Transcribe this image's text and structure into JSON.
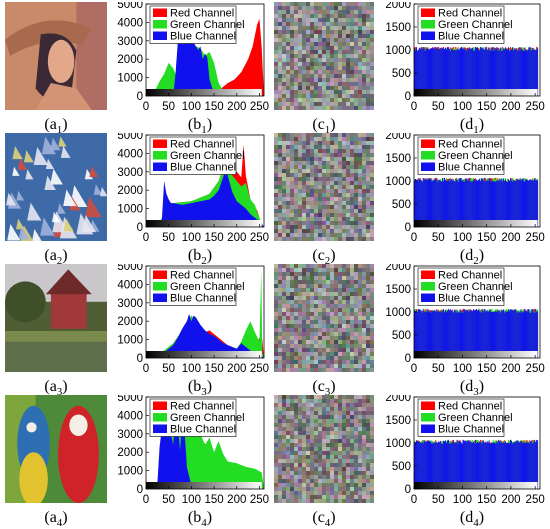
{
  "colors": {
    "red": "#ff0000",
    "green": "#22dd22",
    "blue": "#1111ee"
  },
  "legend_labels": [
    "Red Channel",
    "Green Channel",
    "Blue Channel"
  ],
  "rows": [
    {
      "image_caption": {
        "letter": "(a",
        "sub": "1",
        "close": ")"
      },
      "image_subject": "portrait-photo",
      "plain_hist_caption": {
        "letter": "(b",
        "sub": "1",
        "close": ")"
      },
      "cipher_caption": {
        "letter": "(c",
        "sub": "1",
        "close": ")"
      },
      "cipher_hist_caption": {
        "letter": "(d",
        "sub": "1",
        "close": ")"
      }
    },
    {
      "image_caption": {
        "letter": "(a",
        "sub": "2",
        "close": ")"
      },
      "image_subject": "sailboats-photo",
      "plain_hist_caption": {
        "letter": "(b",
        "sub": "2",
        "close": ")"
      },
      "cipher_caption": {
        "letter": "(c",
        "sub": "2",
        "close": ")"
      },
      "cipher_hist_caption": {
        "letter": "(d",
        "sub": "2",
        "close": ")"
      }
    },
    {
      "image_caption": {
        "letter": "(a",
        "sub": "3",
        "close": ")"
      },
      "image_subject": "house-photo",
      "plain_hist_caption": {
        "letter": "(b",
        "sub": "3",
        "close": ")"
      },
      "cipher_caption": {
        "letter": "(c",
        "sub": "3",
        "close": ")"
      },
      "cipher_hist_caption": {
        "letter": "(d",
        "sub": "3",
        "close": ")"
      }
    },
    {
      "image_caption": {
        "letter": "(a",
        "sub": "4",
        "close": ")"
      },
      "image_subject": "parrots-photo",
      "plain_hist_caption": {
        "letter": "(b",
        "sub": "4",
        "close": ")"
      },
      "cipher_caption": {
        "letter": "(c",
        "sub": "4",
        "close": ")"
      },
      "cipher_hist_caption": {
        "letter": "(d",
        "sub": "4",
        "close": ")"
      }
    }
  ],
  "chart_data": [
    {
      "id": "b1",
      "type": "area",
      "title": "",
      "xlabel": "",
      "ylabel": "",
      "xlim": [
        0,
        260
      ],
      "ylim": [
        0,
        5000
      ],
      "xticks": [
        0,
        50,
        100,
        150,
        200,
        250
      ],
      "yticks": [
        0,
        1000,
        2000,
        3000,
        4000,
        5000
      ],
      "legend": "top-left",
      "series": [
        {
          "name": "Red Channel",
          "x": [
            0,
            30,
            50,
            70,
            85,
            100,
            110,
            130,
            150,
            165,
            180,
            195,
            210,
            225,
            235,
            245,
            250,
            255,
            260
          ],
          "y": [
            0,
            0,
            0,
            50,
            200,
            600,
            1000,
            600,
            300,
            400,
            700,
            900,
            1300,
            2000,
            2700,
            3900,
            4200,
            2600,
            0
          ]
        },
        {
          "name": "Green Channel",
          "x": [
            0,
            20,
            30,
            40,
            50,
            60,
            70,
            80,
            90,
            100,
            110,
            120,
            130,
            140,
            150,
            160,
            170,
            180,
            200,
            220,
            240,
            255,
            260
          ],
          "y": [
            0,
            300,
            800,
            1200,
            1800,
            1500,
            900,
            1400,
            2600,
            3000,
            2700,
            2600,
            2200,
            2400,
            1800,
            700,
            300,
            100,
            50,
            30,
            20,
            10,
            0
          ]
        },
        {
          "name": "Blue Channel",
          "x": [
            0,
            40,
            50,
            60,
            65,
            70,
            75,
            80,
            85,
            90,
            95,
            100,
            105,
            110,
            115,
            120,
            125,
            130,
            135,
            140,
            145,
            150,
            160,
            170,
            200,
            260
          ],
          "y": [
            0,
            0,
            0,
            0,
            1200,
            2900,
            3000,
            2800,
            3100,
            3000,
            3200,
            3100,
            2900,
            2700,
            2500,
            2700,
            2000,
            2300,
            2100,
            900,
            500,
            200,
            80,
            30,
            0,
            0
          ]
        }
      ]
    },
    {
      "id": "d1",
      "type": "bar",
      "title": "",
      "xlabel": "",
      "ylabel": "",
      "xlim": [
        0,
        260
      ],
      "ylim": [
        0,
        2000
      ],
      "xticks": [
        0,
        50,
        100,
        150,
        200,
        250
      ],
      "yticks": [
        0,
        500,
        1000,
        1500,
        2000
      ],
      "legend": "top-left",
      "series": [
        {
          "name": "Red Channel",
          "x": [
            0,
            255
          ],
          "y": [
            1024,
            1024
          ]
        },
        {
          "name": "Green Channel",
          "x": [
            0,
            255
          ],
          "y": [
            1024,
            1024
          ]
        },
        {
          "name": "Blue Channel",
          "x": [
            0,
            255
          ],
          "y": [
            1024,
            1024
          ]
        }
      ]
    },
    {
      "id": "b2",
      "type": "area",
      "title": "",
      "xlabel": "",
      "ylabel": "",
      "xlim": [
        0,
        260
      ],
      "ylim": [
        0,
        5000
      ],
      "xticks": [
        0,
        50,
        100,
        150,
        200,
        250
      ],
      "yticks": [
        0,
        1000,
        2000,
        3000,
        4000,
        5000
      ],
      "legend": "top-left",
      "series": [
        {
          "name": "Red Channel",
          "x": [
            0,
            20,
            30,
            40,
            60,
            100,
            140,
            160,
            170,
            175,
            180,
            185,
            190,
            200,
            210,
            215,
            220,
            230,
            240,
            245,
            250,
            255,
            260
          ],
          "y": [
            0,
            0,
            200,
            800,
            1300,
            1400,
            1800,
            2500,
            3200,
            3600,
            4100,
            3700,
            3200,
            3000,
            2700,
            4500,
            2800,
            1500,
            1100,
            900,
            500,
            200,
            0
          ]
        },
        {
          "name": "Green Channel",
          "x": [
            0,
            20,
            30,
            40,
            60,
            100,
            140,
            160,
            170,
            175,
            180,
            185,
            190,
            200,
            210,
            220,
            230,
            240,
            245,
            250,
            255,
            260
          ],
          "y": [
            0,
            0,
            200,
            800,
            1300,
            1400,
            1800,
            2500,
            3100,
            3500,
            3700,
            3100,
            2800,
            2500,
            2200,
            2400,
            1500,
            1200,
            800,
            500,
            200,
            0
          ]
        },
        {
          "name": "Blue Channel",
          "x": [
            0,
            20,
            30,
            35,
            40,
            45,
            50,
            55,
            60,
            80,
            100,
            120,
            140,
            150,
            160,
            170,
            175,
            180,
            190,
            200,
            210,
            220,
            230,
            240,
            245,
            250,
            255,
            260
          ],
          "y": [
            0,
            0,
            100,
            400,
            2500,
            1800,
            1500,
            1300,
            1300,
            1200,
            1300,
            1400,
            1500,
            1700,
            2000,
            2700,
            3100,
            2800,
            1900,
            1400,
            1200,
            1000,
            700,
            500,
            400,
            300,
            150,
            0
          ]
        }
      ]
    },
    {
      "id": "d2",
      "type": "bar",
      "title": "",
      "xlabel": "",
      "ylabel": "",
      "xlim": [
        0,
        260
      ],
      "ylim": [
        0,
        2000
      ],
      "xticks": [
        0,
        50,
        100,
        150,
        200,
        250
      ],
      "yticks": [
        0,
        500,
        1000,
        1500,
        2000
      ],
      "legend": "top-left",
      "series": [
        {
          "name": "Red Channel",
          "x": [
            0,
            255
          ],
          "y": [
            1024,
            1024
          ]
        },
        {
          "name": "Green Channel",
          "x": [
            0,
            255
          ],
          "y": [
            1024,
            1024
          ]
        },
        {
          "name": "Blue Channel",
          "x": [
            0,
            255
          ],
          "y": [
            1024,
            1024
          ]
        }
      ]
    },
    {
      "id": "b3",
      "type": "area",
      "title": "",
      "xlabel": "",
      "ylabel": "",
      "xlim": [
        0,
        260
      ],
      "ylim": [
        0,
        5000
      ],
      "xticks": [
        0,
        50,
        100,
        150,
        200,
        250
      ],
      "yticks": [
        0,
        1000,
        2000,
        3000,
        4000,
        5000
      ],
      "legend": "top-left",
      "series": [
        {
          "name": "Red Channel",
          "x": [
            0,
            20,
            40,
            60,
            80,
            90,
            100,
            110,
            120,
            130,
            140,
            150,
            160,
            170,
            180,
            190,
            200,
            210,
            220,
            230,
            240,
            245,
            250,
            255,
            260
          ],
          "y": [
            0,
            100,
            400,
            800,
            1500,
            1900,
            2300,
            2000,
            1600,
            1400,
            1500,
            1300,
            1100,
            900,
            700,
            600,
            500,
            400,
            700,
            1000,
            600,
            800,
            1100,
            1300,
            0
          ]
        },
        {
          "name": "Green Channel",
          "x": [
            0,
            20,
            40,
            60,
            80,
            90,
            100,
            110,
            120,
            140,
            150,
            160,
            170,
            180,
            190,
            200,
            210,
            220,
            230,
            240,
            250,
            254,
            256,
            260
          ],
          "y": [
            0,
            100,
            400,
            800,
            1500,
            1900,
            2300,
            2000,
            1500,
            1300,
            1200,
            1000,
            800,
            700,
            600,
            500,
            900,
            1500,
            2000,
            1400,
            900,
            4800,
            300,
            0
          ]
        },
        {
          "name": "Blue Channel",
          "x": [
            0,
            20,
            40,
            60,
            70,
            80,
            90,
            95,
            100,
            105,
            110,
            120,
            130,
            140,
            150,
            160,
            170,
            180,
            190,
            200,
            210,
            220,
            230,
            240,
            250,
            255,
            260
          ],
          "y": [
            0,
            50,
            300,
            700,
            1100,
            1600,
            2000,
            2400,
            2000,
            2300,
            2200,
            1800,
            1500,
            1300,
            1200,
            1000,
            800,
            700,
            600,
            500,
            800,
            600,
            400,
            300,
            200,
            100,
            0
          ]
        }
      ]
    },
    {
      "id": "d3",
      "type": "bar",
      "title": "",
      "xlabel": "",
      "ylabel": "",
      "xlim": [
        0,
        260
      ],
      "ylim": [
        0,
        2000
      ],
      "xticks": [
        0,
        50,
        100,
        150,
        200,
        250
      ],
      "yticks": [
        0,
        500,
        1000,
        1500,
        2000
      ],
      "legend": "top-left",
      "series": [
        {
          "name": "Red Channel",
          "x": [
            0,
            255
          ],
          "y": [
            1024,
            1024
          ]
        },
        {
          "name": "Green Channel",
          "x": [
            0,
            255
          ],
          "y": [
            1024,
            1024
          ]
        },
        {
          "name": "Blue Channel",
          "x": [
            0,
            255
          ],
          "y": [
            1024,
            1024
          ]
        }
      ]
    },
    {
      "id": "b4",
      "type": "area",
      "title": "",
      "xlabel": "",
      "ylabel": "",
      "xlim": [
        0,
        260
      ],
      "ylim": [
        0,
        5000
      ],
      "xticks": [
        0,
        50,
        100,
        150,
        200,
        250
      ],
      "yticks": [
        0,
        1000,
        2000,
        3000,
        4000,
        5000
      ],
      "legend": "top-left",
      "series": [
        {
          "name": "Red Channel",
          "x": [
            0,
            30,
            50,
            60,
            70,
            80,
            85,
            90,
            100,
            110,
            120,
            140,
            160,
            180,
            200,
            220,
            240,
            255,
            260
          ],
          "y": [
            0,
            0,
            100,
            400,
            1500,
            2500,
            3400,
            3300,
            3000,
            2800,
            2700,
            2200,
            1600,
            1400,
            1200,
            1100,
            1000,
            800,
            0
          ]
        },
        {
          "name": "Green Channel",
          "x": [
            0,
            20,
            30,
            40,
            50,
            60,
            70,
            80,
            90,
            100,
            110,
            120,
            130,
            140,
            150,
            160,
            170,
            180,
            200,
            220,
            240,
            255,
            260
          ],
          "y": [
            0,
            0,
            200,
            1000,
            2200,
            3000,
            3400,
            3300,
            3000,
            2900,
            3200,
            3000,
            2400,
            2800,
            2000,
            2600,
            1900,
            1500,
            1400,
            1200,
            1100,
            900,
            0
          ]
        },
        {
          "name": "Blue Channel",
          "x": [
            0,
            20,
            25,
            30,
            35,
            40,
            45,
            50,
            55,
            60,
            65,
            70,
            75,
            80,
            85,
            90,
            100,
            110,
            120,
            130,
            260
          ],
          "y": [
            0,
            0,
            300,
            2300,
            3300,
            3500,
            3700,
            3300,
            3000,
            2400,
            4000,
            3600,
            2100,
            4000,
            3200,
            1200,
            200,
            40,
            10,
            0,
            0
          ]
        }
      ]
    },
    {
      "id": "d4",
      "type": "bar",
      "title": "",
      "xlabel": "",
      "ylabel": "",
      "xlim": [
        0,
        260
      ],
      "ylim": [
        0,
        2000
      ],
      "xticks": [
        0,
        50,
        100,
        150,
        200,
        250
      ],
      "yticks": [
        0,
        500,
        1000,
        1500,
        2000
      ],
      "legend": "top-left",
      "series": [
        {
          "name": "Red Channel",
          "x": [
            0,
            255
          ],
          "y": [
            1024,
            1024
          ]
        },
        {
          "name": "Green Channel",
          "x": [
            0,
            255
          ],
          "y": [
            1024,
            1024
          ]
        },
        {
          "name": "Blue Channel",
          "x": [
            0,
            255
          ],
          "y": [
            1024,
            1024
          ]
        }
      ]
    }
  ]
}
